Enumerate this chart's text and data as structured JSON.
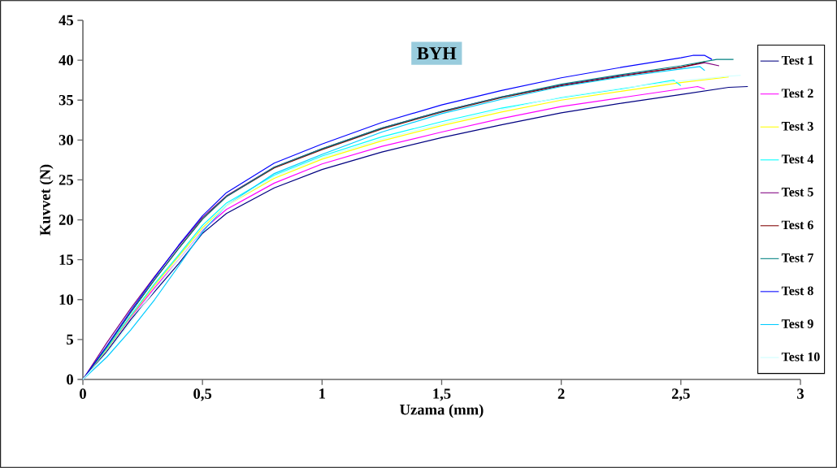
{
  "chart_data": {
    "type": "line",
    "title": "BYH",
    "xlabel": "Uzama (mm)",
    "ylabel": "Kuvvet (N)",
    "xlim": [
      0,
      3
    ],
    "xticks": [
      0,
      {
        "value": 0.5,
        "label": "0,5"
      },
      1,
      {
        "value": 1.5,
        "label": "1,5"
      },
      2,
      {
        "value": 2.5,
        "label": "2,5"
      },
      3
    ],
    "ylim": [
      0,
      45
    ],
    "yticks": [
      0,
      5,
      10,
      15,
      20,
      25,
      30,
      35,
      40,
      45
    ],
    "grid": false,
    "legend": "right",
    "marker": "none",
    "line_style": "solid",
    "series": [
      {
        "name": "Test 1",
        "color": "#000080",
        "x": [
          0,
          0.1,
          0.2,
          0.3,
          0.4,
          0.5,
          0.6,
          0.8,
          1,
          1.25,
          1.5,
          1.75,
          2,
          2.25,
          2.5,
          2.7,
          2.78
        ],
        "values": [
          0,
          3.5,
          7.5,
          11,
          14.5,
          18.3,
          20.8,
          24,
          26.3,
          28.5,
          30.3,
          31.9,
          33.4,
          34.6,
          35.7,
          36.6,
          36.7
        ]
      },
      {
        "name": "Test 2",
        "color": "#ff00ff",
        "x": [
          0,
          0.1,
          0.2,
          0.3,
          0.4,
          0.5,
          0.6,
          0.8,
          1,
          1.25,
          1.5,
          1.75,
          2,
          2.25,
          2.5,
          2.57,
          2.6
        ],
        "values": [
          0,
          3.8,
          7.8,
          11.5,
          15,
          18.7,
          21.3,
          24.6,
          27,
          29.2,
          31,
          32.7,
          34.2,
          35.3,
          36.4,
          36.7,
          36.4
        ]
      },
      {
        "name": "Test 3",
        "color": "#ffff00",
        "x": [
          0,
          0.1,
          0.2,
          0.3,
          0.4,
          0.5,
          0.6,
          0.8,
          1,
          1.25,
          1.5,
          1.75,
          2,
          2.25,
          2.5,
          2.7
        ],
        "values": [
          0,
          3.8,
          7.9,
          11.8,
          15.4,
          19,
          21.8,
          25.2,
          27.6,
          29.9,
          31.8,
          33.5,
          35,
          36.1,
          37.2,
          37.9
        ]
      },
      {
        "name": "Test 4",
        "color": "#00ffff",
        "x": [
          0,
          0.1,
          0.2,
          0.3,
          0.4,
          0.5,
          0.6,
          0.8,
          1,
          1.25,
          1.5,
          1.75,
          2,
          2.25,
          2.47,
          2.5
        ],
        "values": [
          0,
          3.9,
          8,
          12,
          15.6,
          19.3,
          22.1,
          25.6,
          28,
          30.4,
          32.3,
          34,
          35.3,
          36.4,
          37.5,
          36.8
        ]
      },
      {
        "name": "Test 5",
        "color": "#800080",
        "x": [
          0,
          0.1,
          0.2,
          0.3,
          0.4,
          0.5,
          0.6,
          0.8,
          1,
          1.25,
          1.5,
          1.75,
          2,
          2.25,
          2.5,
          2.6,
          2.66
        ],
        "values": [
          0,
          4.6,
          8.9,
          12.9,
          16.7,
          20.3,
          23,
          26.6,
          28.9,
          31.5,
          33.6,
          35.4,
          36.9,
          38.1,
          39.1,
          39.7,
          39.3
        ]
      },
      {
        "name": "Test 6",
        "color": "#800000",
        "x": [
          0,
          0.1,
          0.2,
          0.3,
          0.4,
          0.5,
          0.6,
          0.8,
          1,
          1.25,
          1.5,
          1.75,
          2,
          2.25,
          2.5,
          2.6
        ],
        "values": [
          0,
          4.1,
          8.4,
          12.5,
          16.4,
          20.1,
          22.9,
          26.5,
          28.8,
          31.4,
          33.5,
          35.3,
          36.8,
          38,
          39.1,
          39.8
        ]
      },
      {
        "name": "Test 7",
        "color": "#008080",
        "x": [
          0,
          0.1,
          0.2,
          0.3,
          0.4,
          0.5,
          0.6,
          0.8,
          1,
          1.25,
          1.5,
          1.75,
          2,
          2.25,
          2.5,
          2.65,
          2.72
        ],
        "values": [
          0,
          4.1,
          8.4,
          12.5,
          16.4,
          20.1,
          22.9,
          26.6,
          28.9,
          31.5,
          33.6,
          35.4,
          37,
          38.2,
          39.3,
          40.1,
          40.1
        ]
      },
      {
        "name": "Test 8",
        "color": "#0000ff",
        "x": [
          0,
          0.1,
          0.2,
          0.3,
          0.4,
          0.5,
          0.6,
          0.8,
          1,
          1.25,
          1.5,
          1.75,
          2,
          2.25,
          2.5,
          2.55,
          2.6,
          2.63
        ],
        "values": [
          0,
          4.2,
          8.6,
          12.8,
          16.8,
          20.5,
          23.4,
          27.1,
          29.5,
          32.2,
          34.4,
          36.2,
          37.8,
          39.1,
          40.3,
          40.6,
          40.6,
          40.1
        ]
      },
      {
        "name": "Test 9",
        "color": "#00ccff",
        "x": [
          0,
          0.1,
          0.2,
          0.3,
          0.4,
          0.5,
          0.6,
          0.8,
          1,
          1.25,
          1.5,
          1.75,
          2,
          2.25,
          2.5,
          2.58,
          2.6
        ],
        "values": [
          0,
          2.8,
          6.2,
          10,
          14.2,
          18.5,
          21.8,
          25.8,
          28.2,
          31,
          33.3,
          35.1,
          36.7,
          37.9,
          38.9,
          39.2,
          38.7
        ]
      },
      {
        "name": "Test 10",
        "color": "#ccffff",
        "x": [
          0,
          0.1,
          0.2,
          0.3,
          0.4,
          0.5,
          0.6,
          0.8,
          1,
          1.25,
          1.5,
          1.75,
          2,
          2.25,
          2.5,
          2.7,
          2.75
        ],
        "values": [
          0,
          3.3,
          7.2,
          11.2,
          15,
          18.8,
          21.8,
          25.4,
          27.8,
          30.1,
          32,
          33.8,
          35.4,
          36.5,
          37.4,
          38,
          38.1
        ]
      }
    ]
  }
}
